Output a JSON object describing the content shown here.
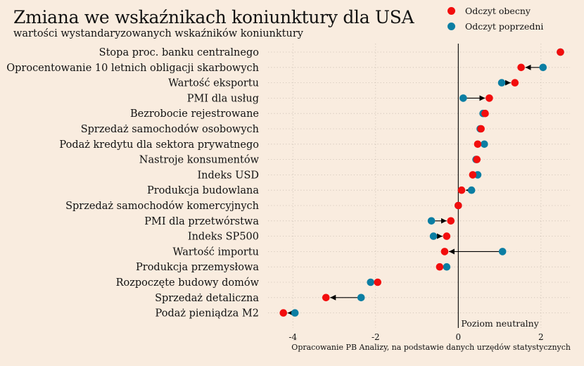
{
  "title": "Zmiana we wskaźnikach koniunktury dla USA",
  "subtitle": "wartości wystandaryzowanych wskaźników koniunktury",
  "caption": "Opracowanie PB Analizy, na podstawie danych urzędów statystycznych",
  "legend": [
    {
      "label": "Odczyt obecny",
      "color": "#f20d0d"
    },
    {
      "label": "Odczyt poprzedni",
      "color": "#0b7ea3"
    }
  ],
  "chart_data": {
    "type": "scatter",
    "subtype": "dumbbell",
    "xlim": [
      -4.6,
      2.7
    ],
    "xticks": [
      -4,
      -2,
      0,
      2
    ],
    "xtick_labels": [
      "-4",
      "-2",
      "0",
      "2"
    ],
    "grid": true,
    "reference_line": {
      "x": 0,
      "label": "Poziom neutralny"
    },
    "categories": [
      "Stopa proc. banku centralnego",
      "Oprocentowanie 10 letnich obligacji skarbowych",
      "Wartość eksportu",
      "PMI dla usług",
      "Bezrobocie rejestrowane",
      "Sprzedaż samochodów osobowych",
      "Podaż kredytu dla sektora prywatnego",
      "Nastroje konsumentów",
      "Indeks USD",
      "Produkcja budowlana",
      "Sprzedaż samochodów komercyjnych",
      "PMI dla przetwórstwa",
      "Indeks SP500",
      "Wartość importu",
      "Produkcja przemysłowa",
      "Rozpoczęte budowy domów",
      "Sprzedaż detaliczna",
      "Podaż pieniądza M2"
    ],
    "series": [
      {
        "name": "Odczyt obecny",
        "color": "#f20d0d",
        "values": [
          2.47,
          1.52,
          1.37,
          0.75,
          0.65,
          0.55,
          0.47,
          0.45,
          0.35,
          0.08,
          0.0,
          -0.18,
          -0.28,
          -0.33,
          -0.45,
          -1.95,
          -3.2,
          -4.23
        ]
      },
      {
        "name": "Odczyt poprzedni",
        "color": "#0b7ea3",
        "values": [
          2.47,
          2.05,
          1.05,
          0.12,
          0.6,
          0.53,
          0.63,
          0.43,
          0.47,
          0.32,
          0.0,
          -0.65,
          -0.6,
          1.07,
          -0.28,
          -2.12,
          -2.35,
          -3.95
        ]
      }
    ]
  }
}
